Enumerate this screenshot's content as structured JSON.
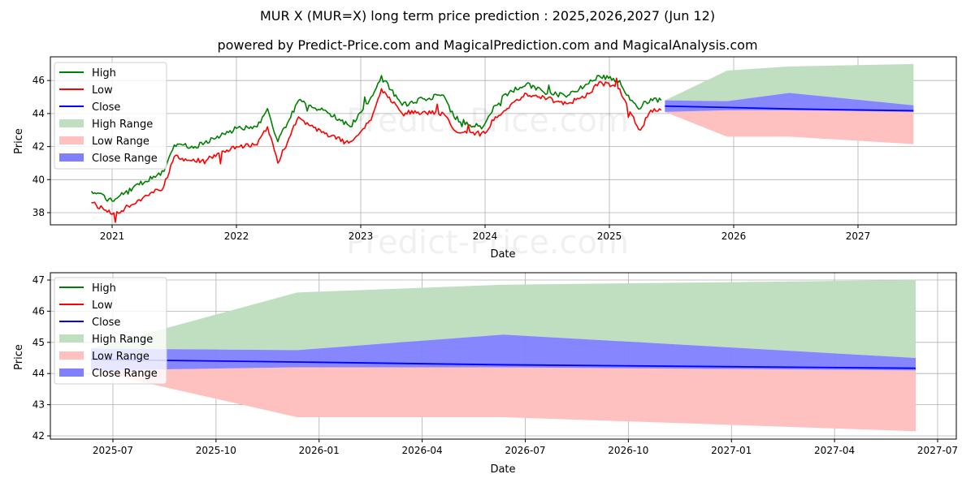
{
  "header": {
    "title": "MUR X (MUR=X) long term price prediction : 2025,2026,2027 (Jun 12)",
    "subtitle": "powered by Predict-Price.com and MagicalPrediction.com and MagicalAnalysis.com"
  },
  "watermark": "Predict-Price.com",
  "colors": {
    "high": "#008000",
    "low": "#ff0000",
    "close": "#0000ff",
    "high_range": "#c0dfc0",
    "low_range": "#ffc0c0",
    "close_range": "#8080ff",
    "grid": "#b0b0b0"
  },
  "legend": {
    "items": [
      {
        "label": "High",
        "kind": "line",
        "color": "#008000"
      },
      {
        "label": "Low",
        "kind": "line",
        "color": "#ff0000"
      },
      {
        "label": "Close",
        "kind": "line",
        "color": "#0000ff"
      },
      {
        "label": "High Range",
        "kind": "patch",
        "color": "#c0dfc0"
      },
      {
        "label": "Low Range",
        "kind": "patch",
        "color": "#ffc0c0"
      },
      {
        "label": "Close Range",
        "kind": "patch",
        "color": "#8080ff"
      }
    ]
  },
  "chart_data": [
    {
      "type": "line",
      "title": "MUR X (MUR=X) long term price prediction : 2025,2026,2027 (Jun 12)",
      "xlabel": "Date",
      "ylabel": "Price",
      "xticks": [
        "2021",
        "2022",
        "2023",
        "2024",
        "2025",
        "2026",
        "2027"
      ],
      "yticks": [
        38,
        40,
        42,
        44,
        46
      ],
      "ylim": [
        37.3,
        47.4
      ],
      "xlim": [
        "2020-07",
        "2027-08"
      ],
      "grid": true,
      "legend_position": "upper left",
      "series": [
        {
          "name": "High",
          "x": [
            "2020-11",
            "2021-01",
            "2021-03",
            "2021-05",
            "2021-06",
            "2021-07",
            "2021-09",
            "2021-11",
            "2022-01",
            "2022-03",
            "2022-04",
            "2022-05",
            "2022-07",
            "2022-08",
            "2022-10",
            "2022-12",
            "2023-02",
            "2023-03",
            "2023-05",
            "2023-07",
            "2023-09",
            "2023-10",
            "2023-12",
            "2024-01",
            "2024-02",
            "2024-03",
            "2024-05",
            "2024-07",
            "2024-09",
            "2024-11",
            "2024-12",
            "2025-02",
            "2025-03",
            "2025-04",
            "2025-05",
            "2025-06"
          ],
          "values": [
            39.3,
            38.7,
            39.5,
            40.2,
            40.5,
            42.1,
            42.0,
            42.5,
            43.1,
            43.2,
            44.3,
            42.3,
            44.8,
            44.5,
            44.0,
            43.2,
            45.0,
            46.3,
            44.5,
            44.9,
            45.1,
            43.8,
            43.2,
            43.4,
            44.5,
            45.2,
            45.8,
            45.2,
            45.1,
            45.8,
            46.3,
            46.0,
            44.8,
            44.3,
            44.9,
            44.8
          ]
        },
        {
          "name": "Low",
          "x": [
            "2020-11",
            "2021-01",
            "2021-03",
            "2021-05",
            "2021-06",
            "2021-07",
            "2021-09",
            "2021-11",
            "2022-01",
            "2022-03",
            "2022-04",
            "2022-05",
            "2022-07",
            "2022-08",
            "2022-10",
            "2022-12",
            "2023-02",
            "2023-03",
            "2023-05",
            "2023-07",
            "2023-09",
            "2023-10",
            "2023-12",
            "2024-01",
            "2024-02",
            "2024-03",
            "2024-05",
            "2024-07",
            "2024-09",
            "2024-11",
            "2024-12",
            "2025-02",
            "2025-03",
            "2025-04",
            "2025-05",
            "2025-06"
          ],
          "values": [
            38.6,
            37.9,
            38.5,
            39.2,
            39.6,
            41.4,
            41.1,
            41.4,
            42.0,
            42.1,
            43.2,
            41.0,
            43.8,
            43.3,
            42.6,
            42.3,
            43.6,
            45.5,
            44.0,
            44.1,
            44.0,
            43.0,
            42.7,
            42.8,
            43.8,
            44.2,
            45.2,
            44.9,
            44.6,
            45.2,
            45.9,
            45.5,
            44.1,
            43.0,
            44.2,
            44.2
          ]
        },
        {
          "name": "Close",
          "x": [
            "2025-06-12",
            "2025-12-12",
            "2026-06-12",
            "2027-06-12"
          ],
          "values": [
            44.45,
            44.37,
            44.28,
            44.17
          ]
        }
      ],
      "bands": [
        {
          "name": "High Range",
          "x": [
            "2025-06-12",
            "2025-12-12",
            "2026-06-12",
            "2027-06-12"
          ],
          "upper": [
            44.8,
            46.6,
            46.85,
            47.0
          ],
          "lower": [
            44.8,
            44.75,
            45.25,
            44.5
          ]
        },
        {
          "name": "Close Range",
          "x": [
            "2025-06-12",
            "2025-12-12",
            "2026-06-12",
            "2027-06-12"
          ],
          "upper": [
            44.8,
            44.75,
            45.25,
            44.5
          ],
          "lower": [
            44.1,
            44.2,
            44.2,
            44.1
          ]
        },
        {
          "name": "Low Range",
          "x": [
            "2025-06-12",
            "2025-12-12",
            "2026-06-12",
            "2027-06-12"
          ],
          "upper": [
            44.1,
            44.2,
            44.2,
            44.1
          ],
          "lower": [
            44.1,
            42.6,
            42.6,
            42.15
          ]
        }
      ]
    },
    {
      "type": "area",
      "title": "",
      "xlabel": "Date",
      "ylabel": "Price",
      "xticks": [
        "2025-07",
        "2025-10",
        "2026-01",
        "2026-04",
        "2026-07",
        "2026-10",
        "2027-01",
        "2027-04",
        "2027-07"
      ],
      "yticks": [
        42,
        43,
        44,
        45,
        46,
        47
      ],
      "ylim": [
        41.9,
        47.25
      ],
      "grid": true,
      "legend_position": "upper left",
      "series": [
        {
          "name": "Close",
          "x": [
            "2025-06-12",
            "2025-12-12",
            "2026-06-12",
            "2027-06-12"
          ],
          "values": [
            44.45,
            44.37,
            44.28,
            44.17
          ]
        }
      ],
      "bands": [
        {
          "name": "High Range",
          "x": [
            "2025-06-12",
            "2025-12-12",
            "2026-06-12",
            "2027-06-12"
          ],
          "upper": [
            44.8,
            46.6,
            46.85,
            47.0
          ],
          "lower": [
            44.8,
            44.75,
            45.25,
            44.5
          ]
        },
        {
          "name": "Close Range",
          "x": [
            "2025-06-12",
            "2025-12-12",
            "2026-06-12",
            "2027-06-12"
          ],
          "upper": [
            44.8,
            44.75,
            45.25,
            44.5
          ],
          "lower": [
            44.1,
            44.2,
            44.2,
            44.1
          ]
        },
        {
          "name": "Low Range",
          "x": [
            "2025-06-12",
            "2025-12-12",
            "2026-06-12",
            "2027-06-12"
          ],
          "upper": [
            44.1,
            44.2,
            44.2,
            44.1
          ],
          "lower": [
            44.1,
            42.6,
            42.6,
            42.15
          ]
        }
      ]
    }
  ]
}
